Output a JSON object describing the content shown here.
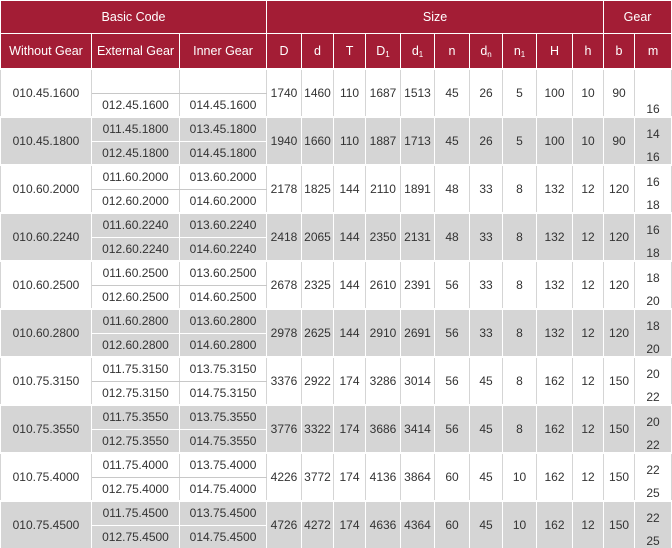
{
  "header": {
    "groups": {
      "basic_code": "Basic Code",
      "size": "Size",
      "gear": "Gear"
    },
    "columns": {
      "without_gear": "Without Gear",
      "external_gear": "External Gear",
      "inner_gear": "Inner Gear",
      "D": "D",
      "d": "d",
      "T": "T",
      "D1_base": "D",
      "D1_sub": "1",
      "d1_base": "d",
      "d1_sub": "1",
      "n": "n",
      "dn_base": "d",
      "dn_sub": "n",
      "n1_base": "n",
      "n1_sub": "1",
      "H": "H",
      "h": "h",
      "b": "b",
      "m": "m"
    }
  },
  "rows": [
    {
      "without_gear": "010.45.1600",
      "ext1": "",
      "int1": "",
      "ext2": "012.45.1600",
      "int2": "014.45.1600",
      "D": "1740",
      "d": "1460",
      "T": "110",
      "D1": "1687",
      "d1": "1513",
      "n": "45",
      "dn": "26",
      "n1": "5",
      "H": "100",
      "h": "10",
      "b": "90",
      "m1": "",
      "m2": "16"
    },
    {
      "without_gear": "010.45.1800",
      "ext1": "011.45.1800",
      "int1": "013.45.1800",
      "ext2": "012.45.1800",
      "int2": "014.45.1800",
      "D": "1940",
      "d": "1660",
      "T": "110",
      "D1": "1887",
      "d1": "1713",
      "n": "45",
      "dn": "26",
      "n1": "5",
      "H": "100",
      "h": "10",
      "b": "90",
      "m1": "14",
      "m2": "16"
    },
    {
      "without_gear": "010.60.2000",
      "ext1": "011.60.2000",
      "int1": "013.60.2000",
      "ext2": "012.60.2000",
      "int2": "014.60.2000",
      "D": "2178",
      "d": "1825",
      "T": "144",
      "D1": "2110",
      "d1": "1891",
      "n": "48",
      "dn": "33",
      "n1": "8",
      "H": "132",
      "h": "12",
      "b": "120",
      "m1": "16",
      "m2": "18"
    },
    {
      "without_gear": "010.60.2240",
      "ext1": "011.60.2240",
      "int1": "013.60.2240",
      "ext2": "012.60.2240",
      "int2": "014.60.2240",
      "D": "2418",
      "d": "2065",
      "T": "144",
      "D1": "2350",
      "d1": "2131",
      "n": "48",
      "dn": "33",
      "n1": "8",
      "H": "132",
      "h": "12",
      "b": "120",
      "m1": "16",
      "m2": "18"
    },
    {
      "without_gear": "010.60.2500",
      "ext1": "011.60.2500",
      "int1": "013.60.2500",
      "ext2": "012.60.2500",
      "int2": "014.60.2500",
      "D": "2678",
      "d": "2325",
      "T": "144",
      "D1": "2610",
      "d1": "2391",
      "n": "56",
      "dn": "33",
      "n1": "8",
      "H": "132",
      "h": "12",
      "b": "120",
      "m1": "18",
      "m2": "20"
    },
    {
      "without_gear": "010.60.2800",
      "ext1": "011.60.2800",
      "int1": "013.60.2800",
      "ext2": "012.60.2800",
      "int2": "014.60.2800",
      "D": "2978",
      "d": "2625",
      "T": "144",
      "D1": "2910",
      "d1": "2691",
      "n": "56",
      "dn": "33",
      "n1": "8",
      "H": "132",
      "h": "12",
      "b": "120",
      "m1": "18",
      "m2": "20"
    },
    {
      "without_gear": "010.75.3150",
      "ext1": "011.75.3150",
      "int1": "013.75.3150",
      "ext2": "012.75.3150",
      "int2": "014.75.3150",
      "D": "3376",
      "d": "2922",
      "T": "174",
      "D1": "3286",
      "d1": "3014",
      "n": "56",
      "dn": "45",
      "n1": "8",
      "H": "162",
      "h": "12",
      "b": "150",
      "m1": "20",
      "m2": "22"
    },
    {
      "without_gear": "010.75.3550",
      "ext1": "011.75.3550",
      "int1": "013.75.3550",
      "ext2": "012.75.3550",
      "int2": "014.75.3550",
      "D": "3776",
      "d": "3322",
      "T": "174",
      "D1": "3686",
      "d1": "3414",
      "n": "56",
      "dn": "45",
      "n1": "8",
      "H": "162",
      "h": "12",
      "b": "150",
      "m1": "20",
      "m2": "22"
    },
    {
      "without_gear": "010.75.4000",
      "ext1": "011.75.4000",
      "int1": "013.75.4000",
      "ext2": "012.75.4000",
      "int2": "014.75.4000",
      "D": "4226",
      "d": "3772",
      "T": "174",
      "D1": "4136",
      "d1": "3864",
      "n": "60",
      "dn": "45",
      "n1": "10",
      "H": "162",
      "h": "12",
      "b": "150",
      "m1": "22",
      "m2": "25"
    },
    {
      "without_gear": "010.75.4500",
      "ext1": "011.75.4500",
      "int1": "013.75.4500",
      "ext2": "012.75.4500",
      "int2": "014.75.4500",
      "D": "4726",
      "d": "4272",
      "T": "174",
      "D1": "4636",
      "d1": "4364",
      "n": "60",
      "dn": "45",
      "n1": "10",
      "H": "162",
      "h": "12",
      "b": "150",
      "m1": "22",
      "m2": "25"
    }
  ]
}
